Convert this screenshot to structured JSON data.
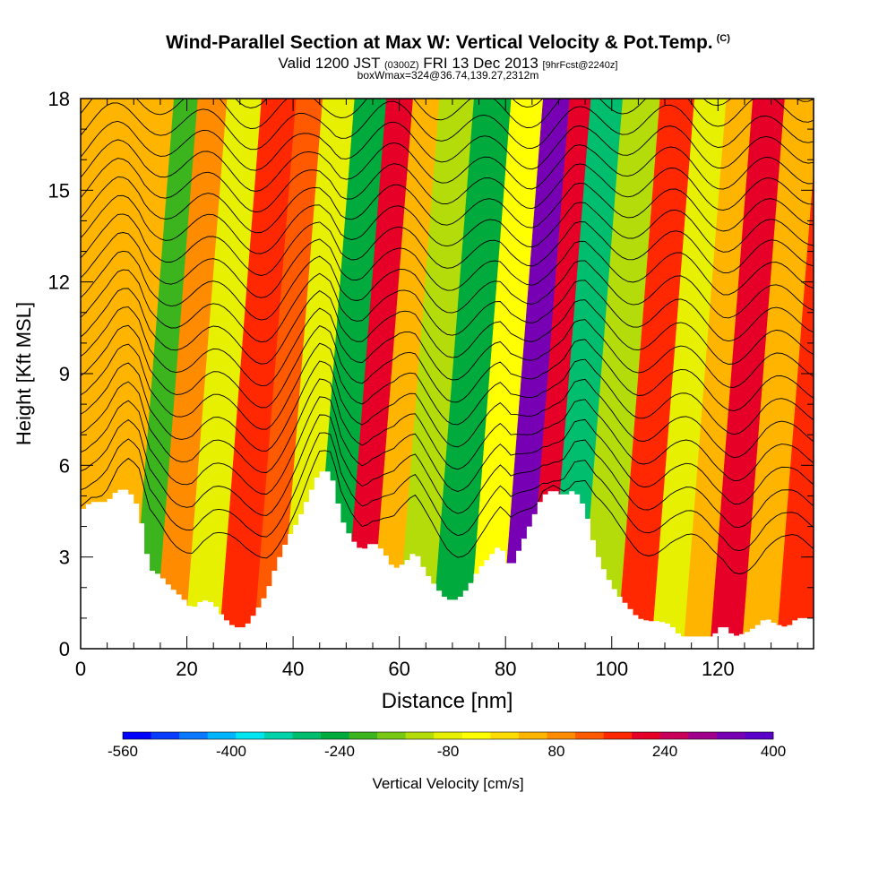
{
  "header": {
    "title": "Wind-Parallel Section at Max W: Vertical Velocity & Pot.Temp.",
    "title_mark": "(C)",
    "valid_prefix": "Valid 1200 JST",
    "valid_utc": "(0300Z)",
    "valid_date": "FRI 13 Dec 2013",
    "forecast": "[9hrFcst@2240z]",
    "boxwmax": "boxWmax=324@36.74,139.27,2312m"
  },
  "colorbar": {
    "label": "Vertical Velocity [cm/s]",
    "tick_labels": [
      "-560",
      "-400",
      "-240",
      "-80",
      "80",
      "240",
      "400"
    ],
    "colors": [
      "#0000ff",
      "#0a3cff",
      "#0a78ff",
      "#00b4ff",
      "#00e6f0",
      "#00d2aa",
      "#00be6e",
      "#00aa3c",
      "#3cb41e",
      "#78c814",
      "#b4dc0a",
      "#e6f000",
      "#ffff00",
      "#ffdc00",
      "#ffb400",
      "#ff8c00",
      "#ff5a00",
      "#ff2800",
      "#e60028",
      "#c8005a",
      "#a0008c",
      "#7800b4",
      "#5a00c8"
    ]
  },
  "chart_data": {
    "type": "heatmap",
    "xlabel": "Distance [nm]",
    "ylabel": "Height [Kft MSL]",
    "xlim": [
      0,
      138
    ],
    "ylim": [
      0,
      18
    ],
    "xticks": [
      0,
      20,
      40,
      60,
      80,
      100,
      120
    ],
    "yticks": [
      0,
      3,
      6,
      9,
      12,
      15,
      18
    ],
    "colorbar_range": [
      -560,
      400
    ],
    "contour_variable": "Potential temperature",
    "terrain_kft": [
      [
        0,
        4.5
      ],
      [
        2,
        4.8
      ],
      [
        5,
        4.8
      ],
      [
        7,
        5.2
      ],
      [
        9,
        5.2
      ],
      [
        11,
        4.6
      ],
      [
        12,
        3.6
      ],
      [
        13,
        2.6
      ],
      [
        15,
        2.4
      ],
      [
        17,
        2.0
      ],
      [
        19,
        1.7
      ],
      [
        21,
        1.3
      ],
      [
        23,
        1.6
      ],
      [
        25,
        1.5
      ],
      [
        27,
        1.0
      ],
      [
        29,
        0.7
      ],
      [
        31,
        0.7
      ],
      [
        33,
        1.2
      ],
      [
        35,
        1.8
      ],
      [
        37,
        2.8
      ],
      [
        39,
        3.6
      ],
      [
        41,
        4.2
      ],
      [
        43,
        5.0
      ],
      [
        45,
        5.8
      ],
      [
        47,
        5.8
      ],
      [
        48,
        5.2
      ],
      [
        49,
        4.3
      ],
      [
        51,
        3.6
      ],
      [
        53,
        3.2
      ],
      [
        55,
        3.5
      ],
      [
        57,
        3.2
      ],
      [
        59,
        2.6
      ],
      [
        61,
        2.8
      ],
      [
        63,
        3.2
      ],
      [
        65,
        2.5
      ],
      [
        67,
        2.0
      ],
      [
        69,
        1.6
      ],
      [
        71,
        1.6
      ],
      [
        73,
        2.0
      ],
      [
        75,
        2.6
      ],
      [
        77,
        3.0
      ],
      [
        79,
        3.4
      ],
      [
        81,
        2.6
      ],
      [
        83,
        3.4
      ],
      [
        85,
        4.2
      ],
      [
        87,
        5.0
      ],
      [
        89,
        5.2
      ],
      [
        91,
        5.0
      ],
      [
        93,
        5.2
      ],
      [
        95,
        4.6
      ],
      [
        97,
        3.2
      ],
      [
        99,
        2.4
      ],
      [
        101,
        1.8
      ],
      [
        103,
        1.4
      ],
      [
        105,
        1.0
      ],
      [
        107,
        0.9
      ],
      [
        109,
        0.9
      ],
      [
        111,
        0.8
      ],
      [
        113,
        0.4
      ],
      [
        115,
        0.4
      ],
      [
        117,
        0.4
      ],
      [
        119,
        0.4
      ],
      [
        121,
        0.8
      ],
      [
        123,
        0.4
      ],
      [
        125,
        0.5
      ],
      [
        127,
        0.7
      ],
      [
        129,
        1.0
      ],
      [
        131,
        0.8
      ],
      [
        133,
        0.7
      ],
      [
        135,
        1.0
      ],
      [
        138,
        1.0
      ]
    ],
    "vertical_velocity_bands": [
      {
        "center_x": 8,
        "value": 40
      },
      {
        "center_x": 11,
        "value": -200
      },
      {
        "center_x": 17,
        "value": 100
      },
      {
        "center_x": 22,
        "value": -60
      },
      {
        "center_x": 30,
        "value": 150
      },
      {
        "center_x": 35,
        "value": 120
      },
      {
        "center_x": 40,
        "value": -80
      },
      {
        "center_x": 47,
        "value": -260
      },
      {
        "center_x": 52,
        "value": 220
      },
      {
        "center_x": 57,
        "value": 60
      },
      {
        "center_x": 62,
        "value": -120
      },
      {
        "center_x": 70,
        "value": -250
      },
      {
        "center_x": 76,
        "value": -40
      },
      {
        "center_x": 82,
        "value": 324
      },
      {
        "center_x": 86,
        "value": 220
      },
      {
        "center_x": 90,
        "value": -280
      },
      {
        "center_x": 98,
        "value": -120
      },
      {
        "center_x": 104,
        "value": 160
      },
      {
        "center_x": 111,
        "value": -60
      },
      {
        "center_x": 116,
        "value": 40
      },
      {
        "center_x": 121,
        "value": 200
      },
      {
        "center_x": 128,
        "value": 60
      },
      {
        "center_x": 134,
        "value": 180
      }
    ]
  }
}
